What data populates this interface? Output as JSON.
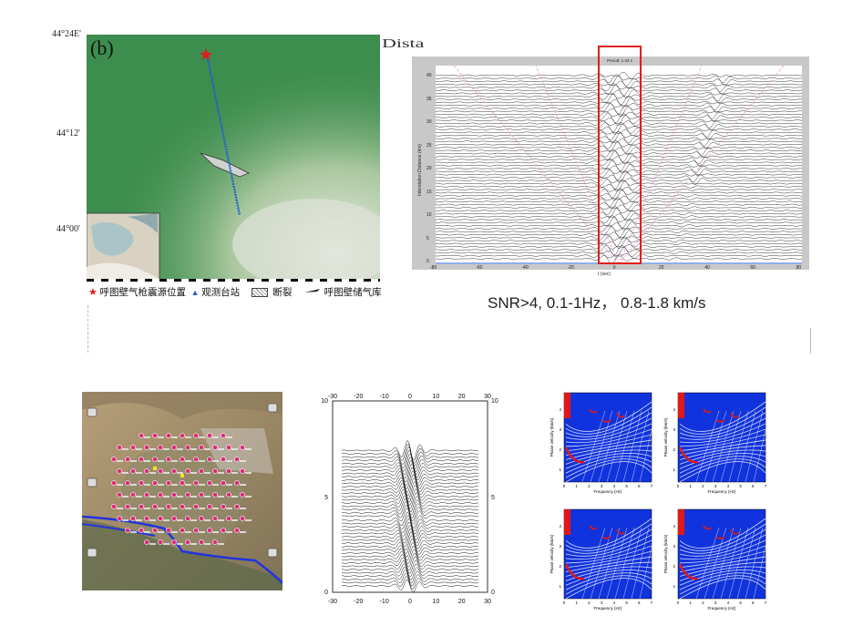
{
  "map": {
    "panel_label": "(b)",
    "lat_ticks": [
      "44°24E'",
      "44°12'",
      "44°00'"
    ],
    "legend": [
      {
        "icon": "red-star",
        "text": "呼图壁气枪震源位置"
      },
      {
        "icon": "blue-triangle",
        "text": "观测台站"
      },
      {
        "icon": "fault-box",
        "text": "断裂"
      },
      {
        "icon": "gas-storage",
        "text": "呼图壁储气库"
      }
    ],
    "cropped_side_text": "Dista"
  },
  "record_section": {
    "header": "Period: 1.43 s",
    "ylabel": "Interstation Distance (km)",
    "xlabel": "t (sec)",
    "x_ticks": [
      "-80",
      "-60",
      "-40",
      "-20",
      "0",
      "20",
      "40",
      "60",
      "80"
    ],
    "y_ticks": [
      "0",
      "5",
      "10",
      "15",
      "20",
      "25",
      "30",
      "35",
      "40"
    ],
    "caption": "SNR>4, 0.1-1Hz， 0.8-1.8 km/s",
    "highlight_color": "#e11d1d"
  },
  "waveform_panel": {
    "x_ticks": [
      "-30",
      "-20",
      "-10",
      "0",
      "10",
      "20",
      "30"
    ],
    "y_ticks_left": [
      "10",
      "5",
      "0"
    ],
    "y_ticks_right": [
      "10",
      "5",
      "0"
    ]
  },
  "phase_velocity": {
    "ylabel": "Phase velocity (km/s)",
    "xlabel": "Frequency (Hz)",
    "x_ticks": [
      "0",
      "1",
      "2",
      "3",
      "4",
      "5",
      "6",
      "7"
    ],
    "y_ticks": [
      "1",
      "2",
      "3",
      "4"
    ],
    "colors": {
      "background": "#1133dd",
      "ridge": "#ffffff",
      "peak": "#e01818"
    }
  }
}
